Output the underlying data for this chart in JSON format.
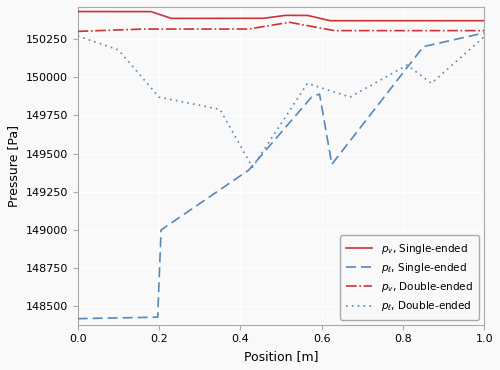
{
  "title": "",
  "xlabel": "Position [m]",
  "ylabel": "Pressure [Pa]",
  "xlim": [
    0.0,
    1.0
  ],
  "ylim": [
    148380,
    150460
  ],
  "yticks": [
    148500,
    148750,
    149000,
    149250,
    149500,
    149750,
    150000,
    150250
  ],
  "xticks": [
    0.0,
    0.2,
    0.4,
    0.6,
    0.8,
    1.0
  ],
  "color_red": "#cc3333",
  "color_blue": "#5588bb",
  "legend_labels": [
    "$p_v$, Single-ended",
    "$p_\\ell$, Single-ended",
    "$p_v$, Double-ended",
    "$p_\\ell$, Double-ended"
  ],
  "background_color": "#f9f9f9",
  "grid_color": "#ffffff"
}
